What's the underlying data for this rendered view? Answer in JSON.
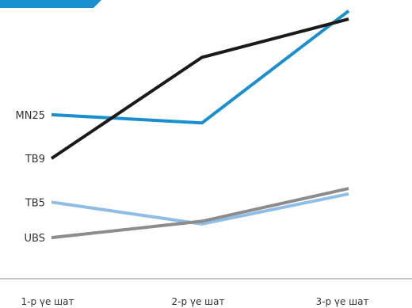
{
  "colors": {
    "accent_banner": "#1a8fd0",
    "axis": "#888888"
  },
  "chart_data": {
    "type": "line",
    "categories": [
      "1-р үе шат",
      "2-р үе шат",
      "3-р үе шат"
    ],
    "series": [
      {
        "name": "MN25",
        "values": [
          58,
          55,
          96
        ],
        "color": "#1a8fd0"
      },
      {
        "name": "TB9",
        "values": [
          42,
          79,
          93
        ],
        "color": "#1a1a1a"
      },
      {
        "name": "TB5",
        "values": [
          26,
          18,
          29
        ],
        "color": "#8fbde6"
      },
      {
        "name": "UBS",
        "values": [
          13,
          19,
          31
        ],
        "color": "#8c8c8c"
      }
    ],
    "ylim": [
      0,
      100
    ],
    "grid": false,
    "legend": "inline-left"
  }
}
